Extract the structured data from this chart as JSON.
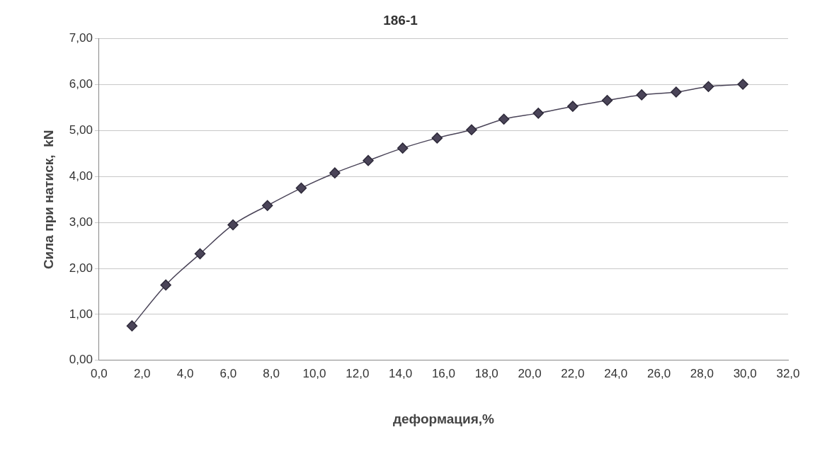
{
  "chart_data": {
    "type": "line",
    "title": "186-1",
    "xlabel": "деформация,%",
    "ylabel": "Сила при натиск,  kN",
    "series": [
      {
        "color": "#4a4458",
        "x": [
          1.53,
          3.1,
          4.69,
          6.22,
          7.82,
          9.39,
          10.95,
          12.5,
          14.1,
          15.7,
          17.3,
          18.8,
          20.4,
          22.0,
          23.6,
          25.2,
          26.8,
          28.3,
          29.9
        ],
        "values": [
          0.75,
          1.64,
          2.32,
          2.95,
          3.37,
          3.75,
          4.08,
          4.35,
          4.62,
          4.84,
          5.02,
          5.25,
          5.38,
          5.53,
          5.66,
          5.78,
          5.84,
          5.96,
          6.01
        ]
      }
    ],
    "xlim": [
      0,
      32
    ],
    "xticks": [
      {
        "value": 0,
        "label": "0,0"
      },
      {
        "value": 2,
        "label": "2,0"
      },
      {
        "value": 4,
        "label": "4,0"
      },
      {
        "value": 6,
        "label": "6,0"
      },
      {
        "value": 8,
        "label": "8,0"
      },
      {
        "value": 10,
        "label": "10,0"
      },
      {
        "value": 12,
        "label": "12,0"
      },
      {
        "value": 14,
        "label": "14,0"
      },
      {
        "value": 16,
        "label": "16,0"
      },
      {
        "value": 18,
        "label": "18,0"
      },
      {
        "value": 20,
        "label": "20,0"
      },
      {
        "value": 22,
        "label": "22,0"
      },
      {
        "value": 24,
        "label": "24,0"
      },
      {
        "value": 26,
        "label": "26,0"
      },
      {
        "value": 28,
        "label": "28,0"
      },
      {
        "value": 30,
        "label": "30,0"
      },
      {
        "value": 32,
        "label": "32,0"
      }
    ],
    "ylim": [
      0,
      7
    ],
    "yticks": [
      {
        "value": 0,
        "label": "0,00"
      },
      {
        "value": 1,
        "label": "1,00"
      },
      {
        "value": 2,
        "label": "2,00"
      },
      {
        "value": 3,
        "label": "3,00"
      },
      {
        "value": 4,
        "label": "4,00"
      },
      {
        "value": 5,
        "label": "5,00"
      },
      {
        "value": 6,
        "label": "6,00"
      },
      {
        "value": 7,
        "label": "7,00"
      }
    ],
    "grid": "y",
    "legend": false,
    "marker": "diamond",
    "line_style": "solid"
  }
}
